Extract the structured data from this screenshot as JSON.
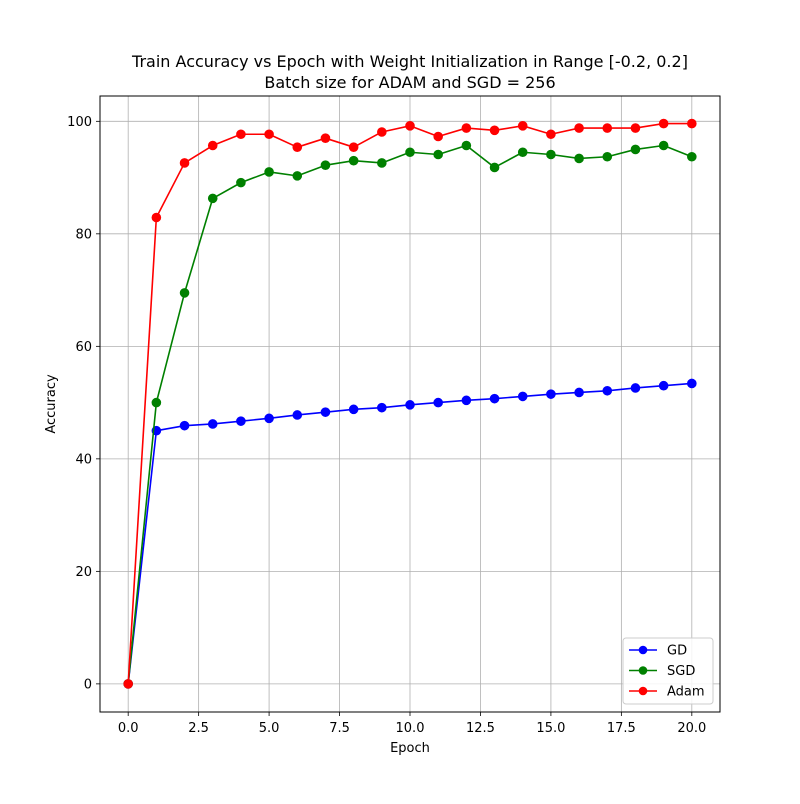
{
  "chart_data": {
    "type": "line",
    "title": "Train Accuracy vs Epoch with Weight Initialization in Range [-0.2, 0.2]",
    "subtitle": "Batch size for ADAM and SGD = 256",
    "xlabel": "Epoch",
    "ylabel": "Accuracy",
    "xlim": [
      -1.0,
      21.0
    ],
    "ylim": [
      -5,
      104.5
    ],
    "xticks": [
      0.0,
      2.5,
      5.0,
      7.5,
      10.0,
      12.5,
      15.0,
      17.5,
      20.0
    ],
    "xtick_labels": [
      "0.0",
      "2.5",
      "5.0",
      "7.5",
      "10.0",
      "12.5",
      "15.0",
      "17.5",
      "20.0"
    ],
    "yticks": [
      0,
      20,
      40,
      60,
      80,
      100
    ],
    "ytick_labels": [
      "0",
      "20",
      "40",
      "60",
      "80",
      "100"
    ],
    "grid": true,
    "legend_position": "bottom-right",
    "x": [
      0,
      1,
      2,
      3,
      4,
      5,
      6,
      7,
      8,
      9,
      10,
      11,
      12,
      13,
      14,
      15,
      16,
      17,
      18,
      19,
      20
    ],
    "series": [
      {
        "name": "GD",
        "color": "#0000ff",
        "values": [
          0,
          45.0,
          45.9,
          46.2,
          46.7,
          47.2,
          47.8,
          48.3,
          48.8,
          49.1,
          49.6,
          50.0,
          50.4,
          50.7,
          51.1,
          51.5,
          51.8,
          52.1,
          52.6,
          53.0,
          53.4
        ]
      },
      {
        "name": "SGD",
        "color": "#008000",
        "values": [
          0,
          50.0,
          69.5,
          86.3,
          89.1,
          91.0,
          90.3,
          92.2,
          93.0,
          92.6,
          94.5,
          94.1,
          95.7,
          91.8,
          94.5,
          94.1,
          93.4,
          93.7,
          95.0,
          95.7,
          93.7
        ]
      },
      {
        "name": "Adam",
        "color": "#ff0000",
        "values": [
          0,
          82.9,
          92.6,
          95.7,
          97.7,
          97.7,
          95.4,
          97.0,
          95.4,
          98.1,
          99.2,
          97.3,
          98.8,
          98.4,
          99.2,
          97.7,
          98.8,
          98.8,
          98.8,
          99.6,
          99.6
        ]
      }
    ]
  }
}
